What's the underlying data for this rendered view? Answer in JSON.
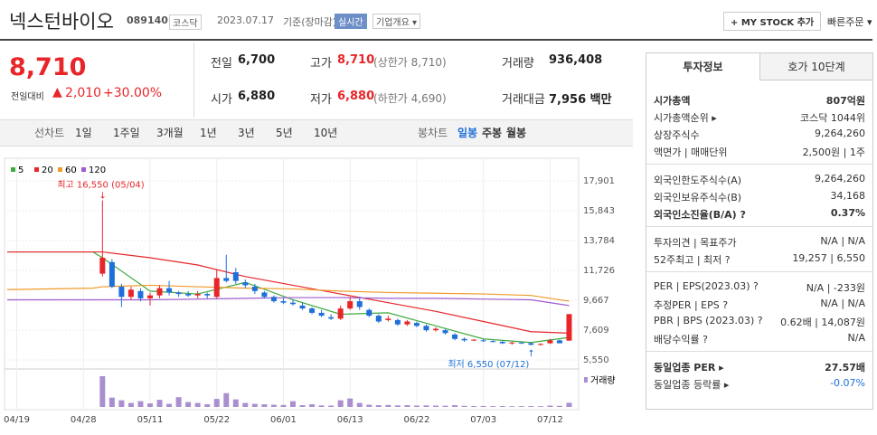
{
  "header": {
    "name": "넥스턴바이오",
    "code": "089140",
    "market": "코스닥",
    "date": "2023.07.17",
    "basis": "기준(장마감)",
    "realtime": "실시간",
    "overview": "기업개요 ▾",
    "mystock": "+ MY STOCK 추가",
    "quickorder": "빠른주문 ▾"
  },
  "price": {
    "current": "8,710",
    "change_label": "전일대비",
    "change": "2,010",
    "percent": "+30.00%"
  },
  "summary": [
    {
      "label": "전일",
      "value": "6,700"
    },
    {
      "label": "고가",
      "value": "8,710",
      "note": "(상한가 8,710)"
    },
    {
      "label": "거래량",
      "value": "936,408"
    },
    {
      "label": "시가",
      "value": "6,880"
    },
    {
      "label": "저가",
      "value": "6,880",
      "note": "(하한가 4,690)"
    },
    {
      "label": "거래대금",
      "value": "7,956 백만"
    }
  ],
  "tabs": {
    "line": [
      "선차트",
      "1일",
      "1주일",
      "3개월",
      "1년",
      "3년",
      "5년",
      "10년"
    ],
    "candle": [
      "봉차트",
      "일봉",
      "주봉",
      "월봉"
    ]
  },
  "chart_data": {
    "type": "candlestick",
    "ylim": [
      5550,
      17901
    ],
    "yticks": [
      {
        "value": 17901,
        "label": "17,901"
      },
      {
        "value": 15843,
        "label": "15,843"
      },
      {
        "value": 13784,
        "label": "13,784"
      },
      {
        "value": 11726,
        "label": "11,726"
      },
      {
        "value": 9667,
        "label": "9,667"
      },
      {
        "value": 7609,
        "label": "7,609"
      },
      {
        "value": 5550,
        "label": "5,550"
      }
    ],
    "xlim": [
      -10,
      50
    ],
    "xticks": [
      {
        "value": -9,
        "label": "04/19"
      },
      {
        "value": -2,
        "label": "04/28"
      },
      {
        "value": 5,
        "label": "05/11"
      },
      {
        "value": 12,
        "label": "05/22"
      },
      {
        "value": 19,
        "label": "06/01"
      },
      {
        "value": 26,
        "label": "06/13"
      },
      {
        "value": 33,
        "label": "06/22"
      },
      {
        "value": 40,
        "label": "07/03"
      },
      {
        "value": 47,
        "label": "07/12"
      }
    ],
    "up_color": "#e8262a",
    "down_color": "#1e6fd9",
    "candles": [
      [
        11500,
        16550,
        11300,
        12600
      ],
      [
        12300,
        12500,
        10500,
        10600
      ],
      [
        10600,
        10800,
        9200,
        9900
      ],
      [
        9900,
        10600,
        9700,
        10400
      ],
      [
        10300,
        10500,
        9600,
        9800
      ],
      [
        9800,
        10200,
        9300,
        10000
      ],
      [
        10000,
        10700,
        9800,
        10500
      ],
      [
        10500,
        11000,
        10000,
        10200
      ],
      [
        10200,
        10300,
        9900,
        10100
      ],
      [
        10100,
        10300,
        9900,
        10000
      ],
      [
        10000,
        10300,
        9800,
        10100
      ],
      [
        10100,
        10200,
        9800,
        10000
      ],
      [
        9900,
        11800,
        9800,
        11200
      ],
      [
        11200,
        12800,
        10900,
        11000
      ],
      [
        11600,
        11900,
        10800,
        11000
      ],
      [
        10900,
        11100,
        10500,
        10700
      ],
      [
        10600,
        10800,
        10100,
        10300
      ],
      [
        10200,
        10300,
        9800,
        9900
      ],
      [
        9900,
        10000,
        9500,
        9600
      ],
      [
        9600,
        9800,
        9400,
        9500
      ],
      [
        9500,
        9700,
        9300,
        9400
      ],
      [
        9300,
        9500,
        9000,
        9100
      ],
      [
        9100,
        9200,
        8700,
        8800
      ],
      [
        8800,
        9000,
        8500,
        8600
      ],
      [
        8500,
        8700,
        8300,
        8400
      ],
      [
        8400,
        9300,
        8300,
        9100
      ],
      [
        9100,
        9900,
        9000,
        9600
      ],
      [
        9600,
        9900,
        9000,
        9200
      ],
      [
        9000,
        9100,
        8500,
        8600
      ],
      [
        8600,
        8700,
        8100,
        8200
      ],
      [
        8300,
        8600,
        8200,
        8400
      ],
      [
        8300,
        8400,
        7900,
        8000
      ],
      [
        8000,
        8300,
        7900,
        8200
      ],
      [
        8100,
        8200,
        7800,
        7900
      ],
      [
        7900,
        8000,
        7500,
        7600
      ],
      [
        7600,
        7800,
        7500,
        7700
      ],
      [
        7600,
        7700,
        7300,
        7400
      ],
      [
        7300,
        7400,
        6900,
        7000
      ],
      [
        7000,
        7100,
        6800,
        6900
      ],
      [
        6900,
        7000,
        6850,
        6950
      ],
      [
        6900,
        7000,
        6800,
        6850
      ],
      [
        6850,
        6900,
        6750,
        6800
      ],
      [
        6800,
        6850,
        6650,
        6700
      ],
      [
        6700,
        6800,
        6600,
        6750
      ],
      [
        6750,
        6800,
        6650,
        6700
      ],
      [
        6700,
        6750,
        6550,
        6600
      ],
      [
        6600,
        6700,
        6550,
        6650
      ],
      [
        6700,
        7000,
        6650,
        6900
      ],
      [
        6900,
        6950,
        6700,
        6700
      ],
      [
        6880,
        8710,
        6880,
        8710
      ]
    ],
    "vlim": [
      0,
      7500000
    ],
    "volumes": [
      6900000,
      2100000,
      1500000,
      900000,
      1300000,
      800000,
      1600000,
      700000,
      2200000,
      1100000,
      900000,
      600000,
      1800000,
      3100000,
      1700000,
      900000,
      700000,
      600000,
      500000,
      450000,
      1300000,
      400000,
      600000,
      350000,
      300000,
      1500000,
      1900000,
      900000,
      500000,
      400000,
      450000,
      350000,
      400000,
      300000,
      350000,
      300000,
      280000,
      400000,
      250000,
      200000,
      220000,
      180000,
      200000,
      160000,
      180000,
      200000,
      170000,
      300000,
      250000,
      936408
    ],
    "ma_x": [
      -10,
      -1,
      0,
      5,
      10,
      15,
      20,
      25,
      30,
      35,
      40,
      45,
      49
    ],
    "series": [
      {
        "name": "5",
        "color": "#3daa3d",
        "values": [
          13000,
          13000,
          12600,
          10300,
          10100,
          10900,
          9700,
          8700,
          8800,
          7900,
          7000,
          6750,
          7100
        ]
      },
      {
        "name": "20",
        "color": "#e8262a",
        "values": [
          13000,
          13000,
          13000,
          12600,
          12100,
          11300,
          10700,
          10100,
          9500,
          8900,
          8200,
          7500,
          7400
        ]
      },
      {
        "name": "60",
        "color": "#f09a2a",
        "values": [
          10400,
          10500,
          10600,
          10700,
          10600,
          10500,
          10450,
          10300,
          10200,
          10150,
          10100,
          10000,
          9600
        ]
      },
      {
        "name": "120",
        "color": "#a15cd0",
        "values": [
          9700,
          9700,
          9700,
          9700,
          9750,
          9800,
          9850,
          9850,
          9800,
          9800,
          9750,
          9700,
          9300
        ]
      }
    ],
    "annotations": {
      "high": "최고 16,550 (05/04)",
      "low": "최저 6,550 (07/12)",
      "volume": "거래량"
    }
  },
  "panel": {
    "tabs": [
      "투자정보",
      "호가 10단계"
    ],
    "sections": [
      [
        {
          "label": "시가총액",
          "value": "807억원"
        },
        {
          "label": "시가총액순위 ▸",
          "value": "코스닥 1044위"
        },
        {
          "label": "상장주식수",
          "value": "9,264,260"
        },
        {
          "label": "액면가 | 매매단위",
          "value": "2,500원 | 1주"
        }
      ],
      [
        {
          "label": "외국인한도주식수(A)",
          "value": "9,264,260"
        },
        {
          "label": "외국인보유주식수(B)",
          "value": "34,168"
        },
        {
          "label": "외국인소진율(B/A) ?",
          "value": "0.37%"
        }
      ],
      [
        {
          "label": "투자의견 | 목표주가",
          "value": "N/A | N/A"
        },
        {
          "label": "52주최고 | 최저 ?",
          "value": "19,257 | 6,550"
        }
      ],
      [
        {
          "label": "PER | EPS(2023.03) ?",
          "value": "N/A | -233원"
        },
        {
          "label": "추정PER | EPS ?",
          "value": "N/A | N/A"
        },
        {
          "label": "PBR | BPS (2023.03) ?",
          "value": "0.62배 | 14,087원"
        },
        {
          "label": "배당수익률 ?",
          "value": "N/A"
        }
      ],
      [
        {
          "label": "동일업종 PER ▸",
          "value": "27.57배"
        },
        {
          "label": "동일업종 등락률 ▸",
          "value": "-0.07%"
        }
      ]
    ]
  }
}
